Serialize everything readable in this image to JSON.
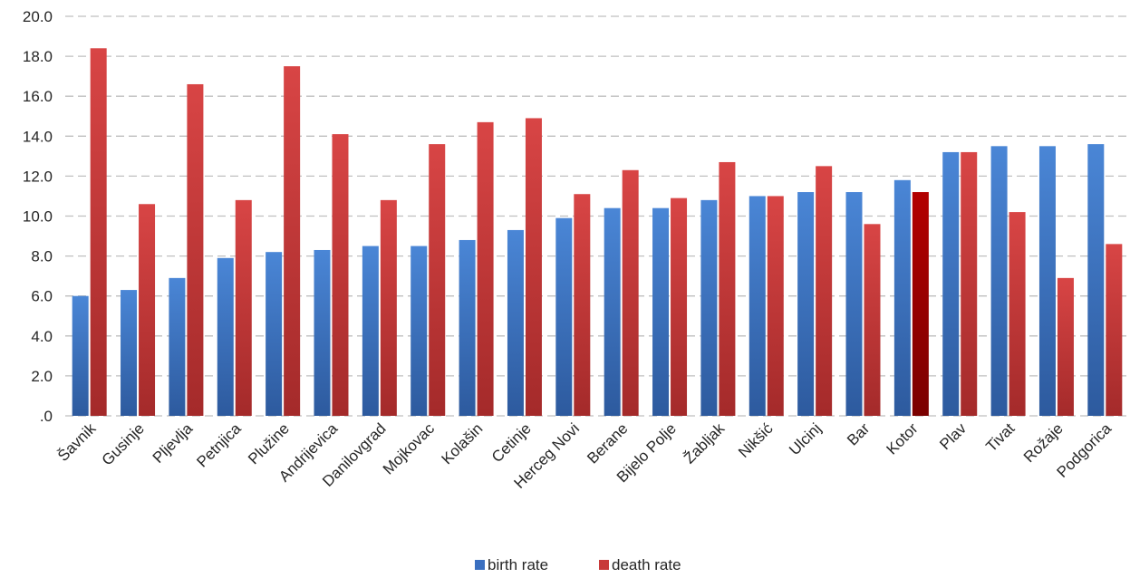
{
  "chart_data": {
    "type": "bar",
    "categories": [
      "Šavnik",
      "Gusinje",
      "Pljevlja",
      "Petnjica",
      "Plužine",
      "Andrijevica",
      "Danilovgrad",
      "Mojkovac",
      "Kolašin",
      "Cetinje",
      "Herceg Novi",
      "Berane",
      "Bijelo Polje",
      "Žabljak",
      "Nikšić",
      "Ulcinj",
      "Bar",
      "Kotor",
      "Plav",
      "Tivat",
      "Rožaje",
      "Podgorica"
    ],
    "series": [
      {
        "name": "birth rate",
        "color": "#3a6fc0",
        "values": [
          6.0,
          6.3,
          6.9,
          7.9,
          8.2,
          8.3,
          8.5,
          8.5,
          8.8,
          9.3,
          9.9,
          10.4,
          10.4,
          10.8,
          11.0,
          11.2,
          11.2,
          11.8,
          13.2,
          13.5,
          13.5,
          13.6
        ]
      },
      {
        "name": "death rate",
        "color": "#c83a3a",
        "values": [
          18.4,
          10.6,
          16.6,
          10.8,
          17.5,
          14.1,
          10.8,
          13.6,
          14.7,
          14.9,
          11.1,
          12.3,
          10.9,
          12.7,
          11.0,
          12.5,
          9.6,
          11.2,
          13.2,
          10.2,
          6.9,
          8.6
        ]
      }
    ],
    "highlight": {
      "series": 1,
      "category": "Kotor",
      "color": "#a00000"
    },
    "title": "",
    "xlabel": "",
    "ylabel": "",
    "ylim": [
      0,
      20
    ],
    "yticks": [
      ".0",
      "2.0",
      "4.0",
      "6.0",
      "8.0",
      "10.0",
      "12.0",
      "14.0",
      "16.0",
      "18.0",
      "20.0"
    ],
    "grid": true,
    "legend": "bottom-center"
  }
}
